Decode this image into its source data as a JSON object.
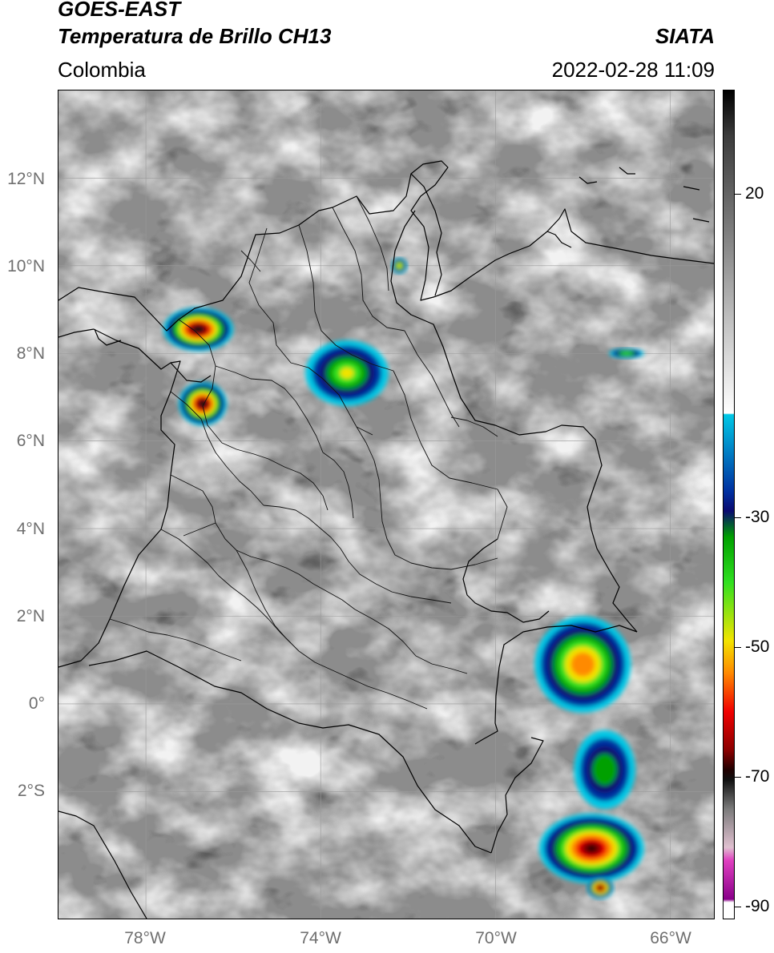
{
  "header": {
    "title_line1": "GOES-EAST",
    "title_line2": "Temperatura de Brillo CH13",
    "brand": "SIATA",
    "region": "Colombia",
    "timestamp": "2022-02-28 11:09"
  },
  "map": {
    "projection": "lat-lon",
    "lon_range": [
      -80,
      -65
    ],
    "lat_range": [
      -4.9,
      14
    ],
    "grid": true,
    "lat_ticks": [
      {
        "value": 12,
        "label": "12°N"
      },
      {
        "value": 10,
        "label": "10°N"
      },
      {
        "value": 8,
        "label": "8°N"
      },
      {
        "value": 6,
        "label": "6°N"
      },
      {
        "value": 4,
        "label": "4°N"
      },
      {
        "value": 2,
        "label": "2°N"
      },
      {
        "value": 0,
        "label": "0°"
      },
      {
        "value": -2,
        "label": "2°S"
      }
    ],
    "lon_ticks": [
      {
        "value": -78,
        "label": "78°W"
      },
      {
        "value": -74,
        "label": "74°W"
      },
      {
        "value": -70,
        "label": "70°W"
      },
      {
        "value": -66,
        "label": "66°W"
      }
    ],
    "storm_cells": [
      {
        "lon": -76.8,
        "lat": 8.55,
        "rx": 0.8,
        "ry": 0.5,
        "min_temp": -72
      },
      {
        "lon": -76.7,
        "lat": 6.85,
        "rx": 0.55,
        "ry": 0.5,
        "min_temp": -70
      },
      {
        "lon": -73.4,
        "lat": 7.55,
        "rx": 0.95,
        "ry": 0.75,
        "min_temp": -45
      },
      {
        "lon": -72.2,
        "lat": 10.0,
        "rx": 0.18,
        "ry": 0.18,
        "min_temp": -50
      },
      {
        "lon": -67.0,
        "lat": 8.0,
        "rx": 0.4,
        "ry": 0.12,
        "min_temp": -40
      },
      {
        "lon": -68.0,
        "lat": 0.9,
        "rx": 1.1,
        "ry": 1.1,
        "min_temp": -55
      },
      {
        "lon": -67.5,
        "lat": -1.5,
        "rx": 0.7,
        "ry": 0.9,
        "min_temp": -35
      },
      {
        "lon": -67.8,
        "lat": -3.3,
        "rx": 1.2,
        "ry": 0.8,
        "min_temp": -68
      },
      {
        "lon": -67.6,
        "lat": -4.2,
        "rx": 0.3,
        "ry": 0.25,
        "min_temp": -72
      }
    ]
  },
  "colorbar": {
    "range": [
      -92,
      36
    ],
    "ticks": [
      {
        "value": 20,
        "label": "20"
      },
      {
        "value": -30,
        "label": "-30"
      },
      {
        "value": -50,
        "label": "-50"
      },
      {
        "value": -70,
        "label": "-70"
      },
      {
        "value": -90,
        "label": "-90"
      }
    ],
    "stops": [
      {
        "t": 36,
        "color": "#000000"
      },
      {
        "t": 29,
        "color": "#3c3c3c"
      },
      {
        "t": 15,
        "color": "#7a7a7a"
      },
      {
        "t": 0,
        "color": "#c2c2c2"
      },
      {
        "t": -13.9,
        "color": "#ffffff"
      },
      {
        "t": -14.1,
        "color": "#00c8e6"
      },
      {
        "t": -26,
        "color": "#0030a0"
      },
      {
        "t": -29,
        "color": "#0a0a70"
      },
      {
        "t": -33,
        "color": "#00a000"
      },
      {
        "t": -40,
        "color": "#30e020"
      },
      {
        "t": -49,
        "color": "#f2e400"
      },
      {
        "t": -54,
        "color": "#ff8a00"
      },
      {
        "t": -60,
        "color": "#f00000"
      },
      {
        "t": -66,
        "color": "#8a0000"
      },
      {
        "t": -69,
        "color": "#200000"
      },
      {
        "t": -70.5,
        "color": "#101010"
      },
      {
        "t": -75,
        "color": "#7a7a7a"
      },
      {
        "t": -81,
        "color": "#e0c0d0"
      },
      {
        "t": -83,
        "color": "#e040c0"
      },
      {
        "t": -89,
        "color": "#8a008a"
      },
      {
        "t": -89.5,
        "color": "#ffffff"
      },
      {
        "t": -92,
        "color": "#ffffff"
      }
    ]
  }
}
